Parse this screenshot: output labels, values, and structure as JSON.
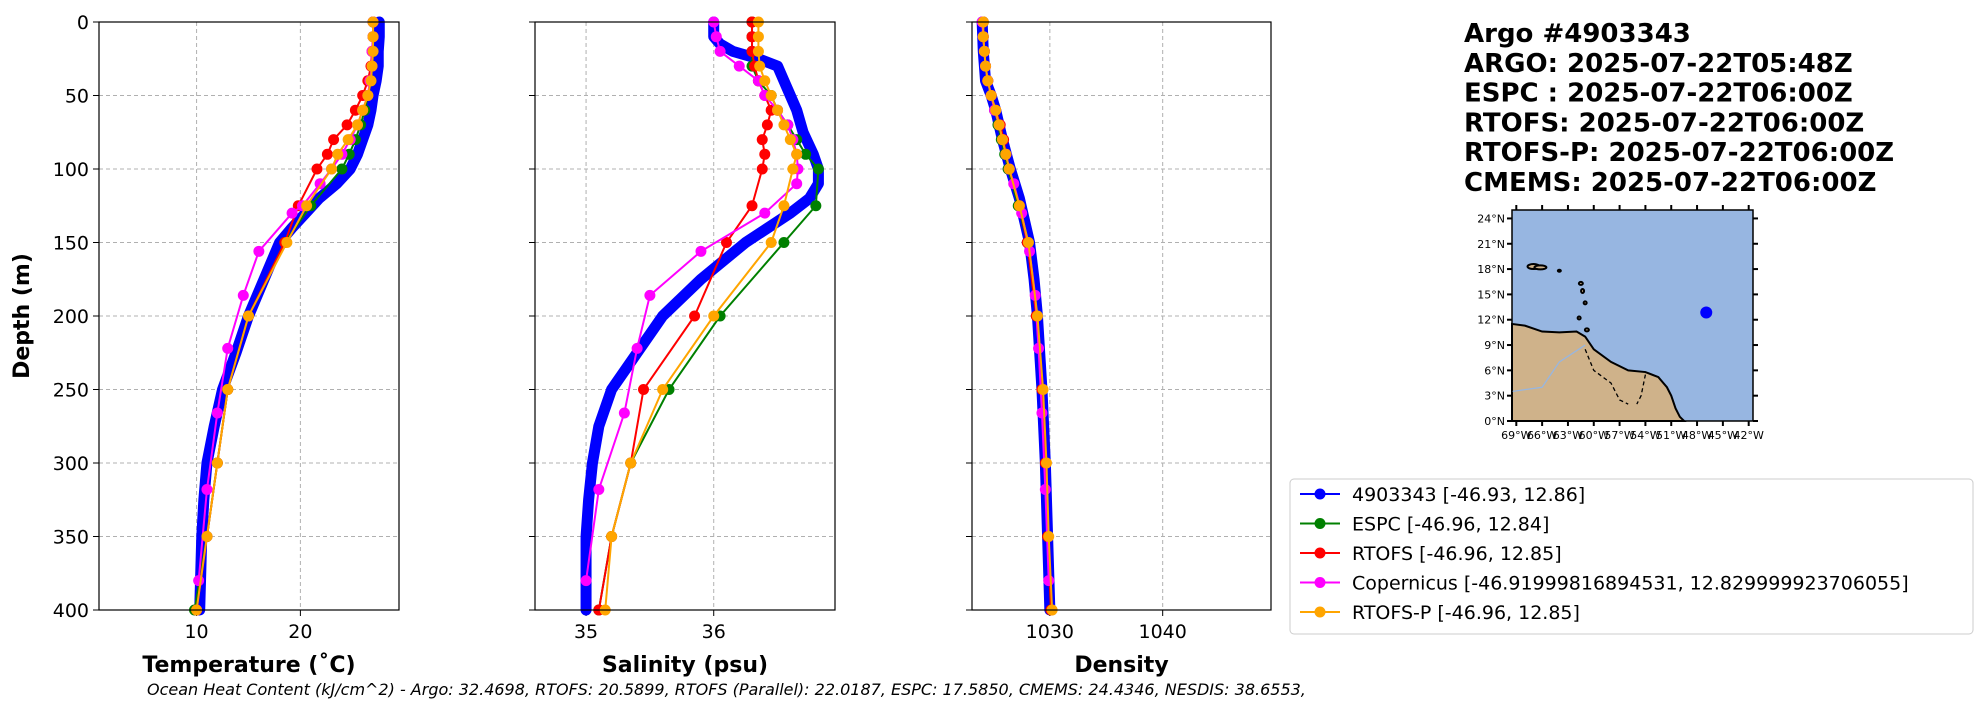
{
  "title_lines": [
    "Argo #4903343",
    "ARGO: 2025-07-22T05:48Z",
    "ESPC : 2025-07-22T06:00Z",
    "RTOFS: 2025-07-22T06:00Z",
    "RTOFS-P: 2025-07-22T06:00Z",
    "CMEMS: 2025-07-22T06:00Z"
  ],
  "footer": "Ocean Heat Content (kJ/cm^2) - Argo: 32.4698,  RTOFS: 20.5899,  RTOFS (Parallel): 22.0187,  ESPC: 17.5850,  CMEMS: 24.4346,  NESDIS: 38.6553,",
  "legend": [
    {
      "label": "4903343 [-46.93, 12.86]",
      "color": "#0000ff"
    },
    {
      "label": "ESPC [-46.96, 12.84]",
      "color": "#008000"
    },
    {
      "label": "RTOFS [-46.96, 12.85]",
      "color": "#ff0000"
    },
    {
      "label": "Copernicus [-46.91999816894531, 12.829999923706055]",
      "color": "#ff00ff"
    },
    {
      "label": "RTOFS-P [-46.96, 12.85]",
      "color": "#ffa500"
    }
  ],
  "map": {
    "lat_ticks": [
      "24°N",
      "21°N",
      "18°N",
      "15°N",
      "12°N",
      "9°N",
      "6°N",
      "3°N",
      "0°N"
    ],
    "lat_values": [
      24,
      21,
      18,
      15,
      12,
      9,
      6,
      3,
      0
    ],
    "lon_ticks": [
      "69°W",
      "66°W",
      "63°W",
      "60°W",
      "57°W",
      "54°W",
      "51°W",
      "48°W",
      "45°W",
      "42°W"
    ],
    "lon_values": [
      -69,
      -66,
      -63,
      -60,
      -57,
      -54,
      -51,
      -48,
      -45,
      -42
    ],
    "lon_range": [
      -69.5,
      -41.5
    ],
    "lat_range": [
      0,
      25
    ],
    "float_position": [
      -46.93,
      12.86
    ],
    "ocean_color": "#97b6e1",
    "land_color": "#cfb28a"
  },
  "chart_data": [
    {
      "type": "line",
      "title": "",
      "xlabel": "Temperature (˚C)",
      "ylabel": "Depth (m)",
      "xlim": [
        0.6,
        29.5
      ],
      "ylim": [
        400,
        0
      ],
      "grid": true,
      "xticks": [
        10,
        20
      ],
      "xtick_labels": [
        "10",
        "20"
      ],
      "yticks": [
        0,
        50,
        100,
        150,
        200,
        250,
        300,
        350,
        400
      ],
      "ytick_labels": [
        "0",
        "50",
        "100",
        "150",
        "200",
        "250",
        "300",
        "350",
        "400"
      ],
      "series": [
        {
          "name": "4903343",
          "depth": [
            0,
            10,
            20,
            30,
            40,
            50,
            60,
            70,
            80,
            90,
            100,
            110,
            120,
            130,
            140,
            150,
            175,
            200,
            225,
            250,
            275,
            300,
            325,
            350,
            375,
            400
          ],
          "values": [
            27.6,
            27.6,
            27.5,
            27.5,
            27.3,
            27.0,
            26.8,
            26.5,
            26.0,
            25.5,
            24.8,
            23.5,
            21.8,
            20.5,
            19.2,
            18.0,
            16.5,
            15.0,
            13.8,
            12.5,
            11.7,
            11.0,
            10.7,
            10.5,
            10.4,
            10.3
          ]
        },
        {
          "name": "ESPC",
          "depth": [
            0,
            10,
            20,
            30,
            40,
            50,
            60,
            70,
            80,
            90,
            100,
            125,
            150,
            200,
            250,
            300,
            350,
            400
          ],
          "values": [
            27.0,
            27.0,
            27.0,
            26.9,
            26.8,
            26.5,
            26.2,
            25.8,
            25.3,
            24.7,
            24.0,
            21.0,
            18.5,
            15.0,
            13.0,
            12.0,
            11.0,
            9.8
          ]
        },
        {
          "name": "RTOFS",
          "depth": [
            0,
            10,
            20,
            30,
            40,
            50,
            60,
            70,
            80,
            90,
            100,
            125,
            150,
            200,
            250,
            300,
            350,
            400
          ],
          "values": [
            27.0,
            27.0,
            26.9,
            26.8,
            26.5,
            26.0,
            25.3,
            24.5,
            23.2,
            22.6,
            21.6,
            19.8,
            18.5,
            15.0,
            13.0,
            12.0,
            11.0,
            10.0
          ]
        },
        {
          "name": "Copernicus",
          "depth": [
            0,
            10,
            20,
            30,
            40,
            50,
            60,
            70,
            80,
            90,
            100,
            110,
            125,
            130,
            156,
            186,
            222,
            266,
            318,
            380
          ],
          "values": [
            27.0,
            27.0,
            26.9,
            26.9,
            26.7,
            26.5,
            26.0,
            25.5,
            24.8,
            24.0,
            23.0,
            21.9,
            20.2,
            19.2,
            16.0,
            14.5,
            13.0,
            12.0,
            11.0,
            10.2
          ]
        },
        {
          "name": "RTOFS-P",
          "depth": [
            0,
            10,
            20,
            30,
            40,
            50,
            60,
            70,
            80,
            90,
            100,
            125,
            150,
            200,
            250,
            300,
            350,
            400
          ],
          "values": [
            27.0,
            27.0,
            27.0,
            26.9,
            26.8,
            26.5,
            26.0,
            25.5,
            24.6,
            23.6,
            23.0,
            20.6,
            18.7,
            15.0,
            13.0,
            12.0,
            11.0,
            10.0
          ]
        }
      ]
    },
    {
      "type": "line",
      "title": "",
      "xlabel": "Salinity (psu)",
      "ylabel": "",
      "xlim": [
        34.6,
        36.95
      ],
      "ylim": [
        400,
        0
      ],
      "grid": true,
      "xticks": [
        35,
        36
      ],
      "xtick_labels": [
        "35",
        "36"
      ],
      "yticks": [
        0,
        50,
        100,
        150,
        200,
        250,
        300,
        350,
        400
      ],
      "series": [
        {
          "name": "4903343",
          "depth": [
            0,
            10,
            15,
            20,
            25,
            30,
            40,
            50,
            60,
            75,
            90,
            100,
            110,
            120,
            130,
            150,
            175,
            200,
            225,
            250,
            275,
            300,
            325,
            350,
            400
          ],
          "values": [
            36.0,
            36.0,
            36.05,
            36.15,
            36.35,
            36.5,
            36.55,
            36.6,
            36.65,
            36.7,
            36.78,
            36.82,
            36.82,
            36.75,
            36.6,
            36.25,
            35.9,
            35.6,
            35.4,
            35.2,
            35.1,
            35.05,
            35.02,
            35.0,
            35.0
          ]
        },
        {
          "name": "ESPC",
          "depth": [
            0,
            10,
            20,
            30,
            40,
            50,
            60,
            70,
            80,
            90,
            100,
            125,
            150,
            200,
            250,
            300,
            350,
            400
          ],
          "values": [
            36.3,
            36.3,
            36.3,
            36.3,
            36.35,
            36.45,
            36.5,
            36.58,
            36.65,
            36.72,
            36.82,
            36.8,
            36.55,
            36.05,
            35.65,
            35.35,
            35.2,
            35.1
          ]
        },
        {
          "name": "RTOFS",
          "depth": [
            0,
            10,
            20,
            30,
            40,
            50,
            60,
            70,
            80,
            90,
            100,
            125,
            150,
            200,
            250,
            300,
            350,
            400
          ],
          "values": [
            36.3,
            36.3,
            36.3,
            36.32,
            36.35,
            36.4,
            36.45,
            36.42,
            36.38,
            36.4,
            36.38,
            36.3,
            36.1,
            35.85,
            35.45,
            35.35,
            35.2,
            35.1
          ]
        },
        {
          "name": "Copernicus",
          "depth": [
            0,
            10,
            20,
            30,
            40,
            50,
            60,
            70,
            80,
            90,
            100,
            110,
            130,
            156,
            186,
            222,
            266,
            318,
            380
          ],
          "values": [
            36.0,
            36.02,
            36.05,
            36.2,
            36.35,
            36.4,
            36.5,
            36.58,
            36.62,
            36.65,
            36.66,
            36.65,
            36.4,
            35.9,
            35.5,
            35.4,
            35.3,
            35.1,
            35.0
          ]
        },
        {
          "name": "RTOFS-P",
          "depth": [
            0,
            10,
            20,
            30,
            40,
            50,
            60,
            70,
            80,
            90,
            100,
            125,
            150,
            200,
            250,
            300,
            350,
            400
          ],
          "values": [
            36.35,
            36.35,
            36.35,
            36.36,
            36.4,
            36.45,
            36.5,
            36.55,
            36.6,
            36.65,
            36.62,
            36.55,
            36.45,
            36.0,
            35.6,
            35.35,
            35.2,
            35.15
          ]
        }
      ]
    },
    {
      "type": "line",
      "title": "",
      "xlabel": "Density",
      "ylabel": "",
      "xlim": [
        1023.1,
        1049.6
      ],
      "ylim": [
        400,
        0
      ],
      "grid": true,
      "xticks": [
        1030,
        1040
      ],
      "xtick_labels": [
        "1030",
        "1040"
      ],
      "yticks": [
        0,
        50,
        100,
        150,
        200,
        250,
        300,
        350,
        400
      ],
      "series": [
        {
          "name": "4903343",
          "depth": [
            0,
            20,
            40,
            50,
            60,
            80,
            100,
            120,
            150,
            175,
            200,
            250,
            300,
            350,
            400
          ],
          "values": [
            1024.0,
            1024.1,
            1024.3,
            1024.8,
            1025.2,
            1025.8,
            1026.5,
            1027.3,
            1028.2,
            1028.6,
            1028.9,
            1029.3,
            1029.6,
            1029.8,
            1030.0
          ]
        },
        {
          "name": "ESPC",
          "depth": [
            0,
            10,
            20,
            30,
            40,
            50,
            60,
            70,
            80,
            90,
            100,
            125,
            150,
            200,
            250,
            300,
            350,
            400
          ],
          "values": [
            1024.1,
            1024.1,
            1024.2,
            1024.3,
            1024.5,
            1024.8,
            1025.1,
            1025.4,
            1025.7,
            1026.0,
            1026.3,
            1027.2,
            1028.0,
            1028.8,
            1029.3,
            1029.6,
            1029.8,
            1030.1
          ]
        },
        {
          "name": "RTOFS",
          "depth": [
            0,
            10,
            20,
            30,
            40,
            50,
            60,
            70,
            80,
            90,
            100,
            125,
            150,
            200,
            250,
            300,
            350,
            400
          ],
          "values": [
            1024.1,
            1024.1,
            1024.2,
            1024.3,
            1024.5,
            1024.8,
            1025.2,
            1025.6,
            1025.9,
            1026.1,
            1026.4,
            1027.3,
            1028.0,
            1028.8,
            1029.3,
            1029.6,
            1029.8,
            1030.1
          ]
        },
        {
          "name": "Copernicus",
          "depth": [
            0,
            10,
            20,
            30,
            40,
            50,
            60,
            70,
            80,
            90,
            100,
            110,
            130,
            156,
            186,
            222,
            266,
            318,
            380
          ],
          "values": [
            1024.0,
            1024.1,
            1024.2,
            1024.3,
            1024.5,
            1024.8,
            1025.1,
            1025.5,
            1025.8,
            1026.1,
            1026.4,
            1026.8,
            1027.5,
            1028.2,
            1028.7,
            1029.0,
            1029.3,
            1029.6,
            1029.9
          ]
        },
        {
          "name": "RTOFS-P",
          "depth": [
            0,
            10,
            20,
            30,
            40,
            50,
            60,
            70,
            80,
            90,
            100,
            125,
            150,
            200,
            250,
            300,
            350,
            400
          ],
          "values": [
            1024.1,
            1024.1,
            1024.2,
            1024.3,
            1024.5,
            1024.8,
            1025.2,
            1025.5,
            1025.8,
            1026.1,
            1026.4,
            1027.3,
            1028.1,
            1028.9,
            1029.4,
            1029.7,
            1029.9,
            1030.2
          ]
        }
      ]
    }
  ]
}
